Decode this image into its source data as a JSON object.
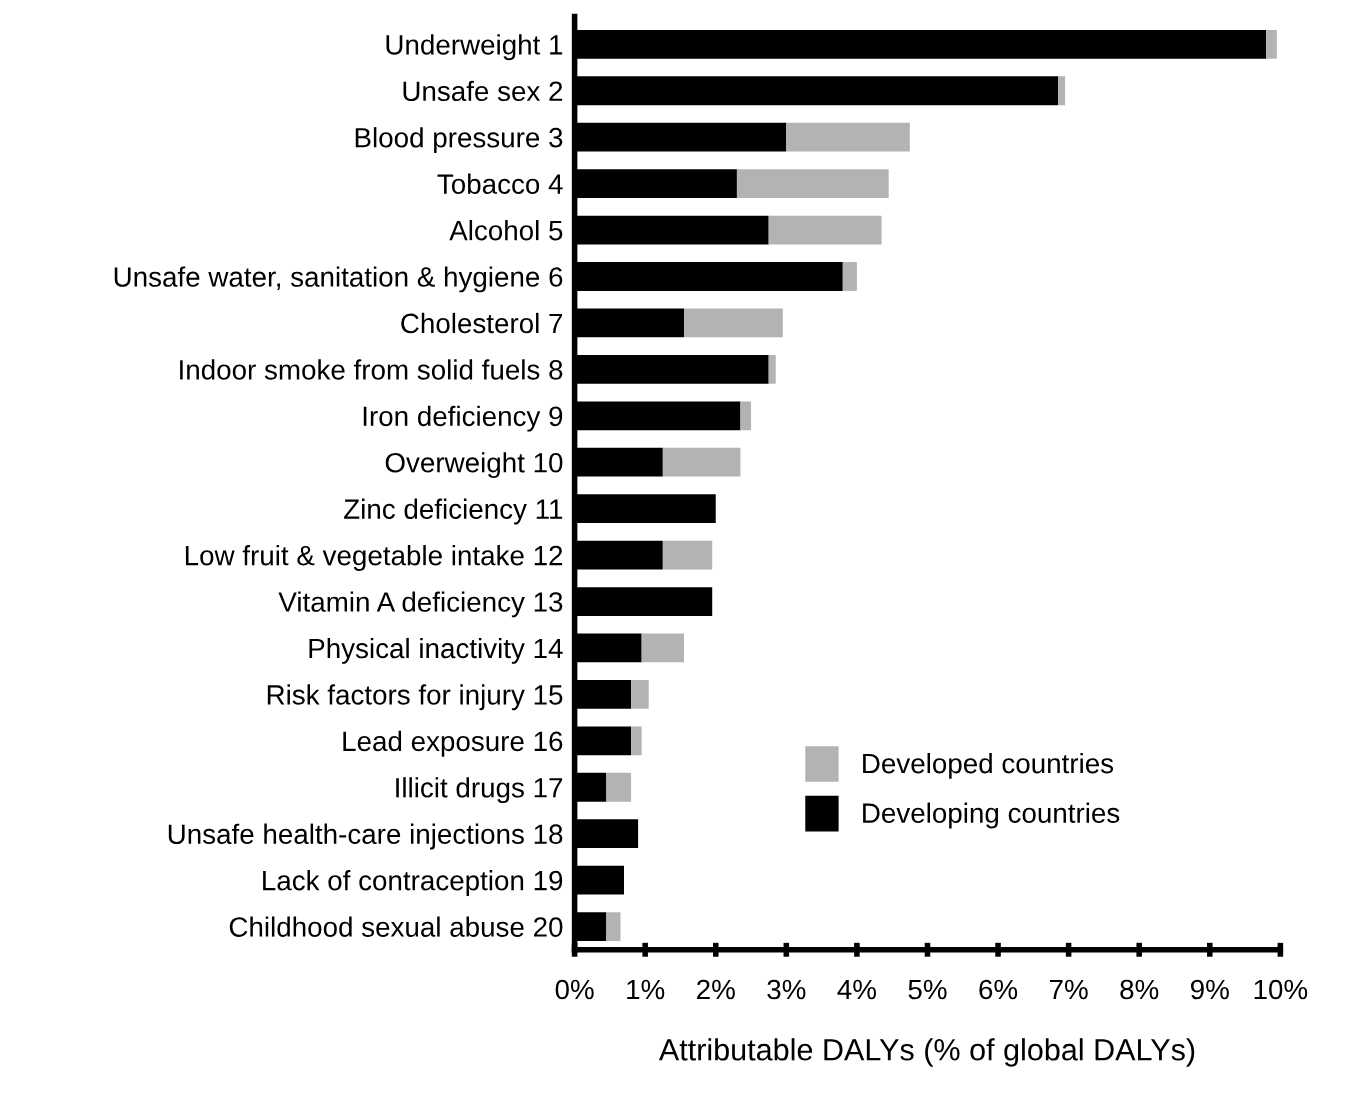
{
  "chart_data": {
    "type": "bar",
    "orientation": "horizontal",
    "stacked": true,
    "xlabel": "Attributable DALYs (% of global DALYs)",
    "categories": [
      "Underweight 1",
      "Unsafe sex 2",
      "Blood pressure 3",
      "Tobacco 4",
      "Alcohol 5",
      "Unsafe water, sanitation & hygiene 6",
      "Cholesterol 7",
      "Indoor smoke from solid fuels 8",
      "Iron deficiency 9",
      "Overweight 10",
      "Zinc deficiency 11",
      "Low fruit & vegetable intake 12",
      "Vitamin A deficiency 13",
      "Physical inactivity 14",
      "Risk factors for injury 15",
      "Lead exposure 16",
      "Illicit drugs 17",
      "Unsafe health-care injections 18",
      "Lack of contraception 19",
      "Childhood sexual abuse 20"
    ],
    "series": [
      {
        "name": "Developing countries",
        "color": "#000000",
        "values": [
          9.8,
          6.85,
          3.0,
          2.3,
          2.75,
          3.8,
          1.55,
          2.75,
          2.35,
          1.25,
          2.0,
          1.25,
          1.95,
          0.95,
          0.8,
          0.8,
          0.45,
          0.9,
          0.7,
          0.45
        ]
      },
      {
        "name": "Developed countries",
        "color": "#b3b3b3",
        "values": [
          0.15,
          0.1,
          1.75,
          2.15,
          1.6,
          0.2,
          1.4,
          0.1,
          0.15,
          1.1,
          null,
          0.7,
          null,
          0.6,
          0.25,
          0.15,
          0.35,
          null,
          null,
          0.2
        ]
      }
    ],
    "xlim": [
      0,
      10
    ],
    "xticks": [
      {
        "value": 0,
        "label": "0%"
      },
      {
        "value": 1,
        "label": "1%"
      },
      {
        "value": 2,
        "label": "2%"
      },
      {
        "value": 3,
        "label": "3%"
      },
      {
        "value": 4,
        "label": "4%"
      },
      {
        "value": 5,
        "label": "5%"
      },
      {
        "value": 6,
        "label": "6%"
      },
      {
        "value": 7,
        "label": "7%"
      },
      {
        "value": 8,
        "label": "8%"
      },
      {
        "value": 9,
        "label": "9%"
      },
      {
        "value": 10,
        "label": "10%"
      }
    ],
    "legend": "bottom",
    "grid": false
  }
}
